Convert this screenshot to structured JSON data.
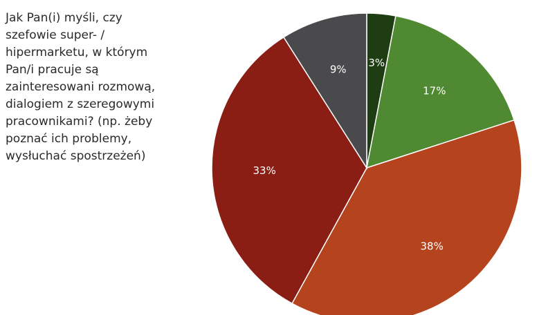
{
  "question": "Jak Pan(i) myśli, czy\nszefowie super- /\nhipermarketu, w którym\nPan/i pracuje są\nzainteresowani rozmową,\ndialogiem z szeregowymi\npracownikami? (np. żeby\npoznać ich problemy,\nwysłuchać spostrzeżeń)",
  "chart_data": {
    "type": "pie",
    "title": "Jak Pan(i) myśli, czy szefowie super- / hipermarketu, w którym Pan/i pracuje są zainteresowani rozmową, dialogiem z szeregowymi pracownikami? (np. żeby poznać ich problemy, wysłuchać spostrzeżeń)",
    "slices": [
      {
        "value": 3,
        "label": "3%",
        "color": "#1f3d12",
        "label_color": "#ffffff"
      },
      {
        "value": 17,
        "label": "17%",
        "color": "#4f8a33",
        "label_color": "#ffffff"
      },
      {
        "value": 38,
        "label": "38%",
        "color": "#b5441e",
        "label_color": "#ffffff"
      },
      {
        "value": 33,
        "label": "33%",
        "color": "#8a1d14",
        "label_color": "#ffffff"
      },
      {
        "value": 9,
        "label": "9%",
        "color": "#4a4a4c",
        "label_color": "#ffffff"
      }
    ],
    "start_angle_deg": -90,
    "direction": "clockwise",
    "legend": "none"
  }
}
